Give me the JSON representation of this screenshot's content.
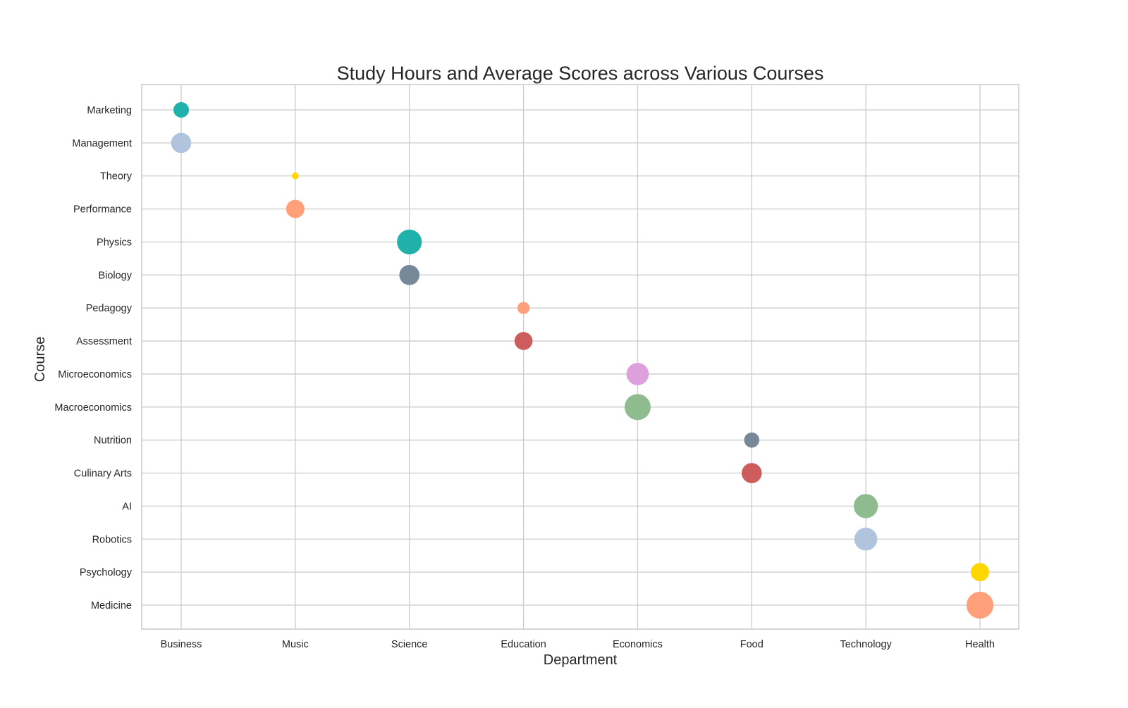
{
  "chart_data": {
    "type": "scatter",
    "title": "Study Hours and Average Scores across Various Courses",
    "xlabel": "Department",
    "ylabel": "Course",
    "x_categories": [
      "Business",
      "Music",
      "Science",
      "Education",
      "Economics",
      "Food",
      "Technology",
      "Health"
    ],
    "y_categories": [
      "Marketing",
      "Management",
      "Theory",
      "Performance",
      "Physics",
      "Biology",
      "Pedagogy",
      "Assessment",
      "Microeconomics",
      "Macroeconomics",
      "Nutrition",
      "Culinary Arts",
      "AI",
      "Robotics",
      "Psychology",
      "Medicine"
    ],
    "grid": true,
    "points": [
      {
        "department": "Business",
        "course": "Marketing",
        "relative_size": 0.5,
        "color": "#20b2aa"
      },
      {
        "department": "Business",
        "course": "Management",
        "relative_size": 0.65,
        "color": "#b0c4de"
      },
      {
        "department": "Music",
        "course": "Theory",
        "relative_size": 0.22,
        "color": "#ffd700"
      },
      {
        "department": "Music",
        "course": "Performance",
        "relative_size": 0.59,
        "color": "#ffa07a"
      },
      {
        "department": "Science",
        "course": "Physics",
        "relative_size": 0.8,
        "color": "#20b2aa"
      },
      {
        "department": "Science",
        "course": "Biology",
        "relative_size": 0.65,
        "color": "#778899"
      },
      {
        "department": "Education",
        "course": "Pedagogy",
        "relative_size": 0.39,
        "color": "#ffa07a"
      },
      {
        "department": "Education",
        "course": "Assessment",
        "relative_size": 0.58,
        "color": "#cd5c5c"
      },
      {
        "department": "Economics",
        "course": "Microeconomics",
        "relative_size": 0.72,
        "color": "#dda0dd"
      },
      {
        "department": "Economics",
        "course": "Macroeconomics",
        "relative_size": 0.84,
        "color": "#8fbc8f"
      },
      {
        "department": "Food",
        "course": "Nutrition",
        "relative_size": 0.49,
        "color": "#778899"
      },
      {
        "department": "Food",
        "course": "Culinary Arts",
        "relative_size": 0.65,
        "color": "#cd5c5c"
      },
      {
        "department": "Technology",
        "course": "AI",
        "relative_size": 0.78,
        "color": "#8fbc8f"
      },
      {
        "department": "Technology",
        "course": "Robotics",
        "relative_size": 0.74,
        "color": "#b0c4de"
      },
      {
        "department": "Health",
        "course": "Psychology",
        "relative_size": 0.59,
        "color": "#ffd700"
      },
      {
        "department": "Health",
        "course": "Medicine",
        "relative_size": 0.87,
        "color": "#ffa07a"
      }
    ]
  }
}
